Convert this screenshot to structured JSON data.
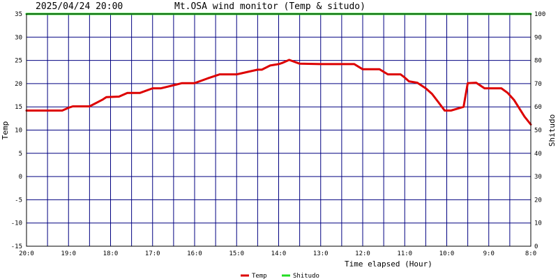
{
  "chart_data": {
    "type": "line",
    "title": "Mt.OSA wind monitor (Temp & situdo)",
    "timestamp": "2025/04/24 20:00",
    "xlabel": "Time elapsed (Hour)",
    "ylabel_left": "Temp",
    "ylabel_right": "Shitudo",
    "x_tick_labels": [
      "20:0",
      "19:0",
      "18:0",
      "17:0",
      "16:0",
      "15:0",
      "14:0",
      "13:0",
      "12:0",
      "11:0",
      "10:0",
      "9:0",
      "8:0"
    ],
    "y_left_ticks": [
      35,
      30,
      25,
      20,
      15,
      10,
      5,
      0,
      -5,
      -10,
      -15
    ],
    "y_right_ticks": [
      100,
      90,
      80,
      70,
      60,
      50,
      40,
      30,
      20,
      10,
      0
    ],
    "ylim_left": [
      -15,
      35
    ],
    "ylim_right": [
      0,
      100
    ],
    "xlim_hours_elapsed": [
      0,
      12
    ],
    "grid": true,
    "legend_position": "bottom-center",
    "series": [
      {
        "name": "Temp",
        "color": "#dd0000",
        "axis": "left",
        "x": [
          0,
          0.85,
          1,
          1.1,
          1.5,
          1.8,
          1.9,
          2.2,
          2.4,
          2.7,
          3.0,
          3.2,
          3.7,
          4.0,
          4.3,
          4.6,
          4.8,
          5.0,
          5.5,
          5.6,
          5.8,
          6.0,
          6.1,
          6.25,
          6.5,
          7.0,
          7.4,
          7.5,
          7.8,
          8.0,
          8.4,
          8.6,
          8.7,
          8.9,
          9.0,
          9.1,
          9.3,
          9.5,
          9.65,
          9.8,
          9.95,
          10.1,
          10.4,
          10.5,
          10.7,
          10.9,
          11.1,
          11.3,
          11.45,
          11.6,
          11.85,
          12.0
        ],
        "y": [
          14.2,
          14.2,
          14.8,
          15.1,
          15.1,
          16.5,
          17.1,
          17.2,
          18.0,
          18.0,
          19.0,
          19.0,
          20.1,
          20.1,
          21.1,
          22.0,
          22.0,
          22.0,
          23.0,
          23.0,
          23.9,
          24.2,
          24.5,
          25.1,
          24.3,
          24.2,
          24.2,
          24.2,
          24.2,
          23.1,
          23.1,
          22.0,
          22.0,
          22.0,
          21.3,
          20.5,
          20.2,
          19.0,
          17.8,
          16.0,
          14.2,
          14.2,
          15.0,
          20.1,
          20.2,
          19.0,
          19.0,
          19.0,
          18.0,
          16.5,
          12.9,
          11.2
        ]
      },
      {
        "name": "Shitudo",
        "color": "#22dd22",
        "axis": "right",
        "x": [
          0,
          12
        ],
        "y": [
          100,
          100
        ]
      }
    ]
  }
}
